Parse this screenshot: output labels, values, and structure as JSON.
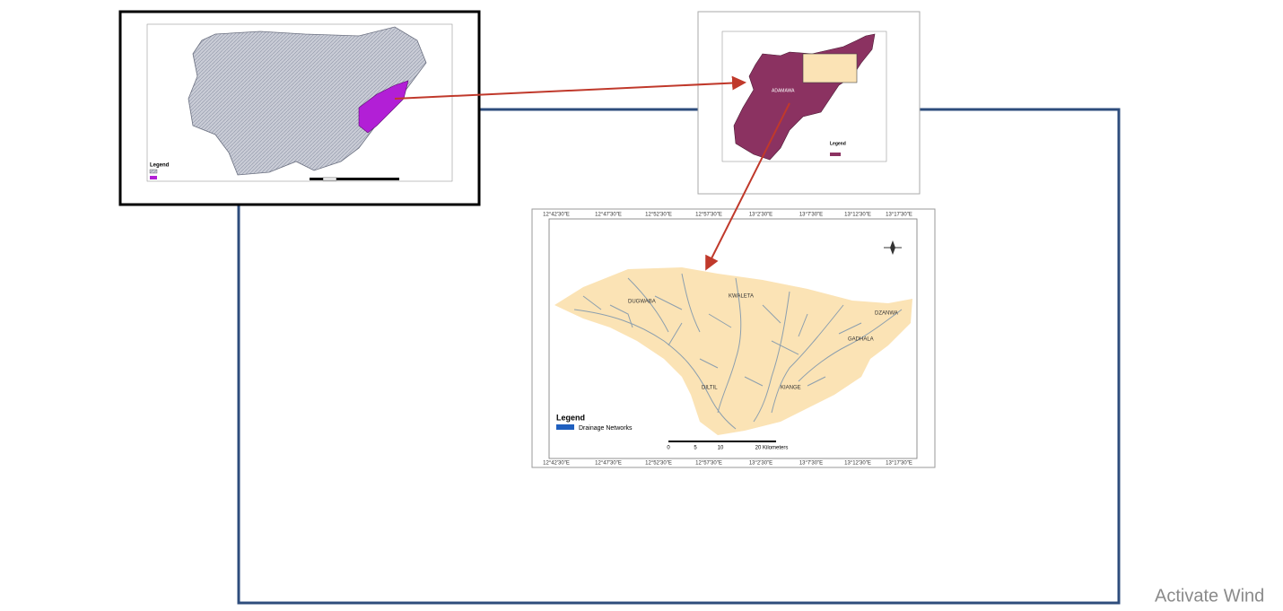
{
  "nigeria_map": {
    "legend_title": "Legend"
  },
  "state_map": {
    "state_label": "ADAMAWA",
    "legend_title": "Legend"
  },
  "drainage_map": {
    "longitudes": [
      "12°42'30\"E",
      "12°47'30\"E",
      "12°52'30\"E",
      "12°57'30\"E",
      "13°2'30\"E",
      "13°7'30\"E",
      "13°12'30\"E",
      "13°17'30\"E"
    ],
    "towns": [
      "DUGWABA",
      "KWALETA",
      "DZANWA",
      "GADHALA",
      "KIANGE",
      "DILTIL"
    ],
    "legend_title": "Legend",
    "legend_item": "Drainage Networks",
    "scale_labels": [
      "0",
      "5",
      "10",
      "20 Kilometers"
    ]
  },
  "watermark": "Activate Wind"
}
